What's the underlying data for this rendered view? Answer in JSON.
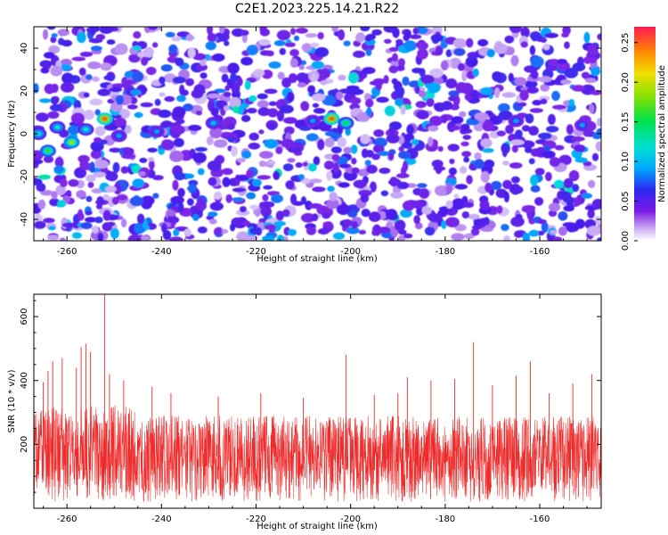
{
  "title": "C2E1.2023.225.14.21.R22",
  "chart_data": [
    {
      "type": "heatmap",
      "xlabel": "Height of straight line (km)",
      "ylabel": "Frequency (Hz)",
      "xlim": [
        -267,
        -147
      ],
      "ylim": [
        -50,
        50
      ],
      "xticks": [
        -260,
        -240,
        -220,
        -200,
        -180,
        -160
      ],
      "yticks": [
        -40,
        -20,
        0,
        20,
        40
      ],
      "colorbar": {
        "label": "Normalized spectral amplitude",
        "range": [
          0.0,
          0.27
        ],
        "ticks": [
          "0.00",
          "0.05",
          "0.10",
          "0.15",
          "0.20",
          "0.25"
        ]
      },
      "hotspots": [
        {
          "x": -266,
          "y": 0,
          "value": 0.12
        },
        {
          "x": -264,
          "y": -8,
          "value": 0.16
        },
        {
          "x": -262,
          "y": 3,
          "value": 0.12
        },
        {
          "x": -259,
          "y": -4,
          "value": 0.18
        },
        {
          "x": -256,
          "y": 2,
          "value": 0.12
        },
        {
          "x": -252,
          "y": 7,
          "value": 0.25
        },
        {
          "x": -249,
          "y": -1,
          "value": 0.09
        },
        {
          "x": -241,
          "y": 1,
          "value": 0.09
        },
        {
          "x": -229,
          "y": 5,
          "value": 0.1
        },
        {
          "x": -208,
          "y": 6,
          "value": 0.09
        },
        {
          "x": -204,
          "y": 7,
          "value": 0.25
        },
        {
          "x": -201,
          "y": 5,
          "value": 0.15
        },
        {
          "x": -165,
          "y": 6,
          "value": 0.09
        },
        {
          "x": -151,
          "y": 4,
          "value": 0.09
        }
      ]
    },
    {
      "type": "line",
      "xlabel": "Height of straight line (km)",
      "ylabel": "SNR (10 * v/v)",
      "xlim": [
        -267,
        -147
      ],
      "ylim": [
        0,
        670
      ],
      "xticks": [
        -260,
        -240,
        -220,
        -200,
        -180,
        -160
      ],
      "yticks": [
        200,
        400,
        600
      ],
      "color": "#ee2a2a",
      "baseline_range": [
        20,
        290
      ],
      "peaks": [
        {
          "x": -265,
          "y": 395
        },
        {
          "x": -264,
          "y": 430
        },
        {
          "x": -263,
          "y": 460
        },
        {
          "x": -261,
          "y": 470
        },
        {
          "x": -258,
          "y": 440
        },
        {
          "x": -257,
          "y": 505
        },
        {
          "x": -256,
          "y": 515
        },
        {
          "x": -255,
          "y": 490
        },
        {
          "x": -252,
          "y": 670
        },
        {
          "x": -251,
          "y": 420
        },
        {
          "x": -248,
          "y": 400
        },
        {
          "x": -242,
          "y": 380
        },
        {
          "x": -238,
          "y": 360
        },
        {
          "x": -228,
          "y": 350
        },
        {
          "x": -219,
          "y": 360
        },
        {
          "x": -210,
          "y": 345
        },
        {
          "x": -201,
          "y": 480
        },
        {
          "x": -195,
          "y": 355
        },
        {
          "x": -190,
          "y": 360
        },
        {
          "x": -188,
          "y": 410
        },
        {
          "x": -183,
          "y": 400
        },
        {
          "x": -178,
          "y": 405
        },
        {
          "x": -174,
          "y": 520
        },
        {
          "x": -170,
          "y": 385
        },
        {
          "x": -165,
          "y": 415
        },
        {
          "x": -162,
          "y": 460
        },
        {
          "x": -158,
          "y": 360
        },
        {
          "x": -153,
          "y": 390
        },
        {
          "x": -149,
          "y": 420
        }
      ]
    }
  ]
}
